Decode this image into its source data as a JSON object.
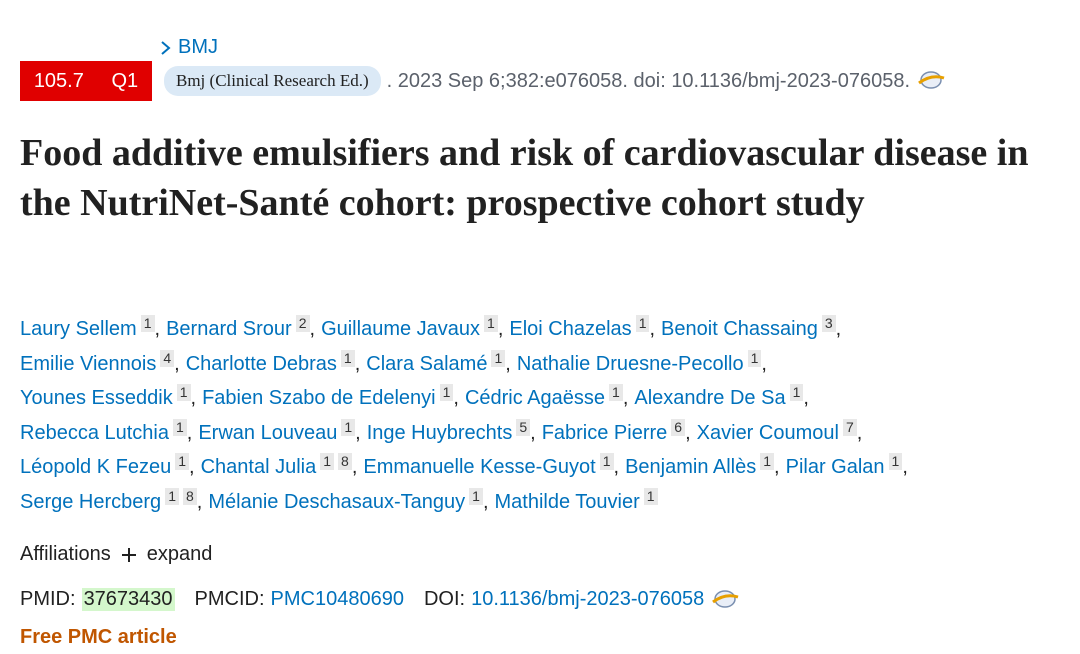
{
  "journal_link": "BMJ",
  "impact_factor": "105.7",
  "quartile": "Q1",
  "journal_name": "Bmj (Clinical Research Ed.)",
  "citation": ". 2023 Sep 6;382:e076058. doi: 10.1136/bmj-2023-076058.",
  "title": "Food additive emulsifiers and risk of cardiovascular disease in the NutriNet-Santé cohort: prospective cohort study",
  "author_separator": ",",
  "author_lines": [
    [
      {
        "name": "Laury Sellem",
        "affiliations": [
          "1"
        ]
      },
      {
        "name": "Bernard Srour",
        "affiliations": [
          "2"
        ]
      },
      {
        "name": "Guillaume Javaux",
        "affiliations": [
          "1"
        ]
      },
      {
        "name": "Eloi Chazelas",
        "affiliations": [
          "1"
        ]
      },
      {
        "name": "Benoit Chassaing",
        "affiliations": [
          "3"
        ]
      }
    ],
    [
      {
        "name": "Emilie Viennois",
        "affiliations": [
          "4"
        ]
      },
      {
        "name": "Charlotte Debras",
        "affiliations": [
          "1"
        ]
      },
      {
        "name": "Clara Salamé",
        "affiliations": [
          "1"
        ]
      },
      {
        "name": "Nathalie Druesne-Pecollo",
        "affiliations": [
          "1"
        ]
      }
    ],
    [
      {
        "name": "Younes Esseddik",
        "affiliations": [
          "1"
        ]
      },
      {
        "name": "Fabien Szabo de Edelenyi",
        "affiliations": [
          "1"
        ]
      },
      {
        "name": "Cédric Agaësse",
        "affiliations": [
          "1"
        ]
      },
      {
        "name": "Alexandre De Sa",
        "affiliations": [
          "1"
        ]
      }
    ],
    [
      {
        "name": "Rebecca Lutchia",
        "affiliations": [
          "1"
        ]
      },
      {
        "name": "Erwan Louveau",
        "affiliations": [
          "1"
        ]
      },
      {
        "name": "Inge Huybrechts",
        "affiliations": [
          "5"
        ]
      },
      {
        "name": "Fabrice Pierre",
        "affiliations": [
          "6"
        ]
      },
      {
        "name": "Xavier Coumoul",
        "affiliations": [
          "7"
        ]
      }
    ],
    [
      {
        "name": "Léopold K Fezeu",
        "affiliations": [
          "1"
        ]
      },
      {
        "name": "Chantal Julia",
        "affiliations": [
          "1",
          "8"
        ]
      },
      {
        "name": "Emmanuelle Kesse-Guyot",
        "affiliations": [
          "1"
        ]
      },
      {
        "name": "Benjamin Allès",
        "affiliations": [
          "1"
        ]
      },
      {
        "name": "Pilar Galan",
        "affiliations": [
          "1"
        ]
      }
    ],
    [
      {
        "name": "Serge Hercberg",
        "affiliations": [
          "1",
          "8"
        ]
      },
      {
        "name": "Mélanie Deschasaux-Tanguy",
        "affiliations": [
          "1"
        ]
      },
      {
        "name": "Mathilde Touvier",
        "affiliations": [
          "1"
        ]
      }
    ]
  ],
  "affiliations": {
    "label": "Affiliations",
    "action": "expand"
  },
  "identifiers": {
    "pmid_label": "PMID:",
    "pmid": "37673430",
    "pmcid_label": "PMCID:",
    "pmcid": "PMC10480690",
    "doi_label": "DOI:",
    "doi": "10.1136/bmj-2023-076058"
  },
  "free_article": "Free PMC article"
}
